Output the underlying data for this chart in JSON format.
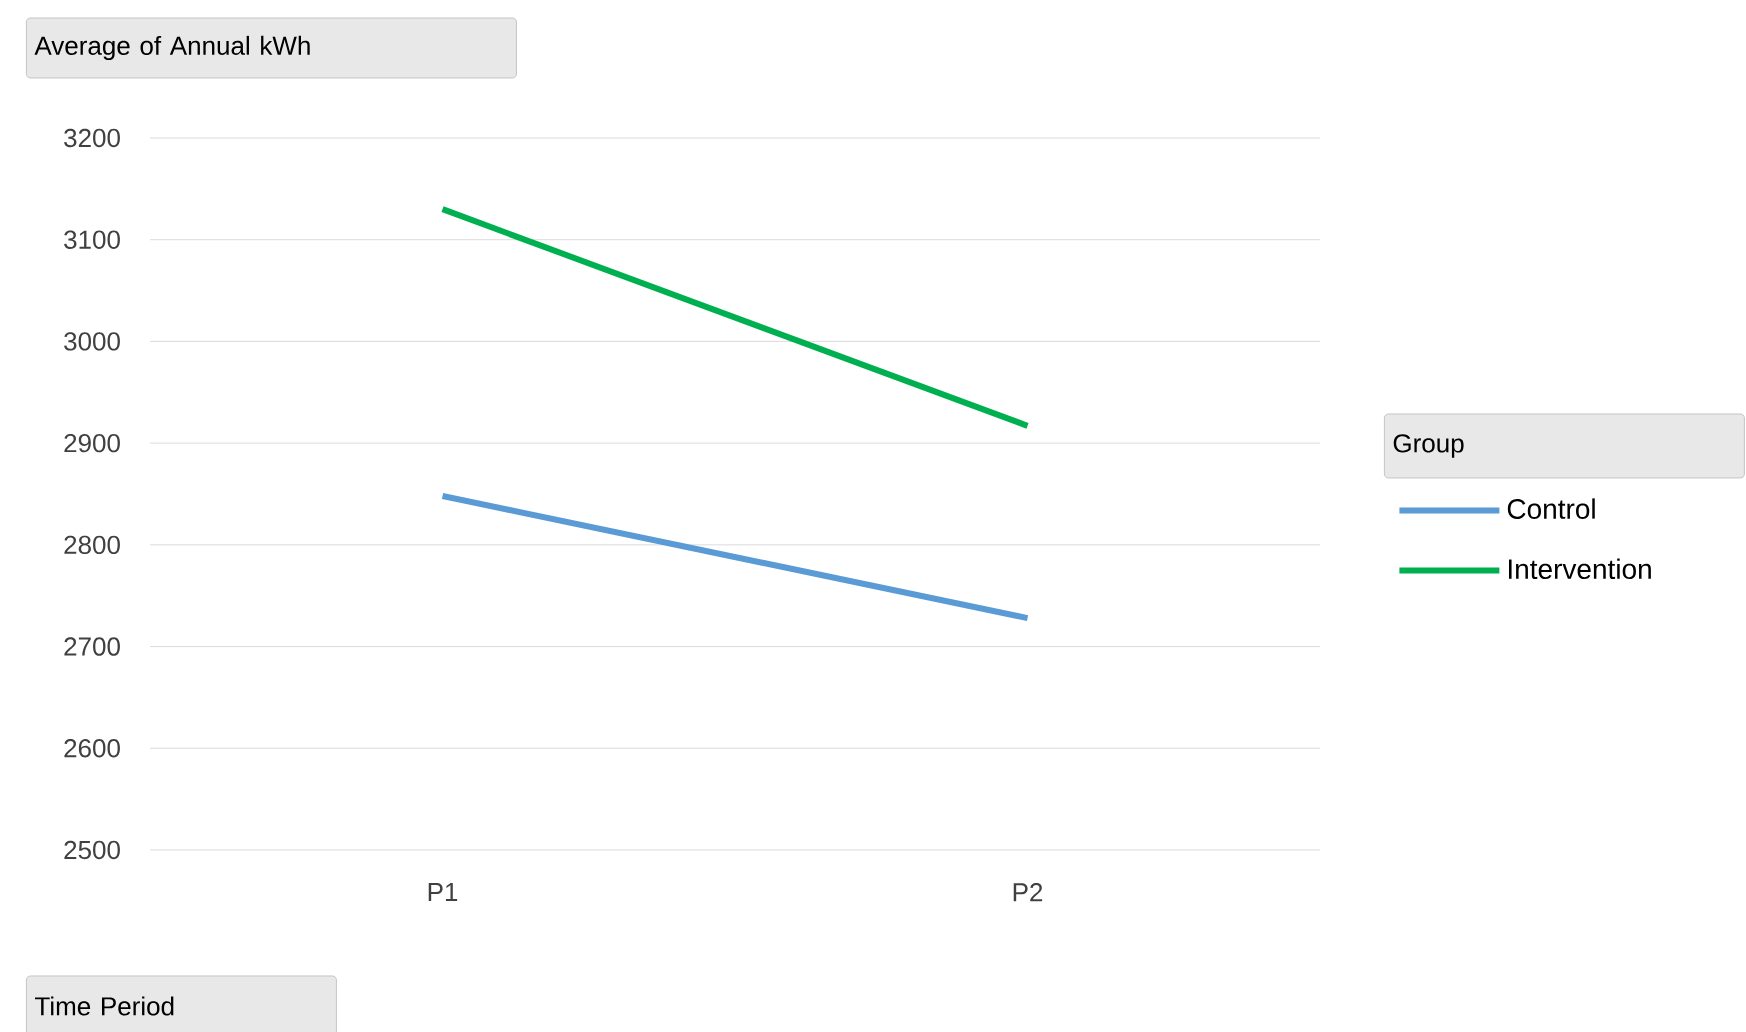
{
  "chart_data": {
    "type": "line",
    "title": "Average of Annual kWh",
    "xlabel": "Time Period",
    "legend_title": "Group",
    "categories": [
      "P1",
      "P2"
    ],
    "series": [
      {
        "name": "Control",
        "color": "#5b9bd5",
        "values": [
          2848,
          2728
        ]
      },
      {
        "name": "Intervention",
        "color": "#00b050",
        "values": [
          3130,
          2917
        ]
      }
    ],
    "ylim": [
      2500,
      3200
    ],
    "yticks": [
      2500,
      2600,
      2700,
      2800,
      2900,
      3000,
      3100,
      3200
    ],
    "grid": "y",
    "legend": "right",
    "marker": "none",
    "line_style": "solid"
  }
}
